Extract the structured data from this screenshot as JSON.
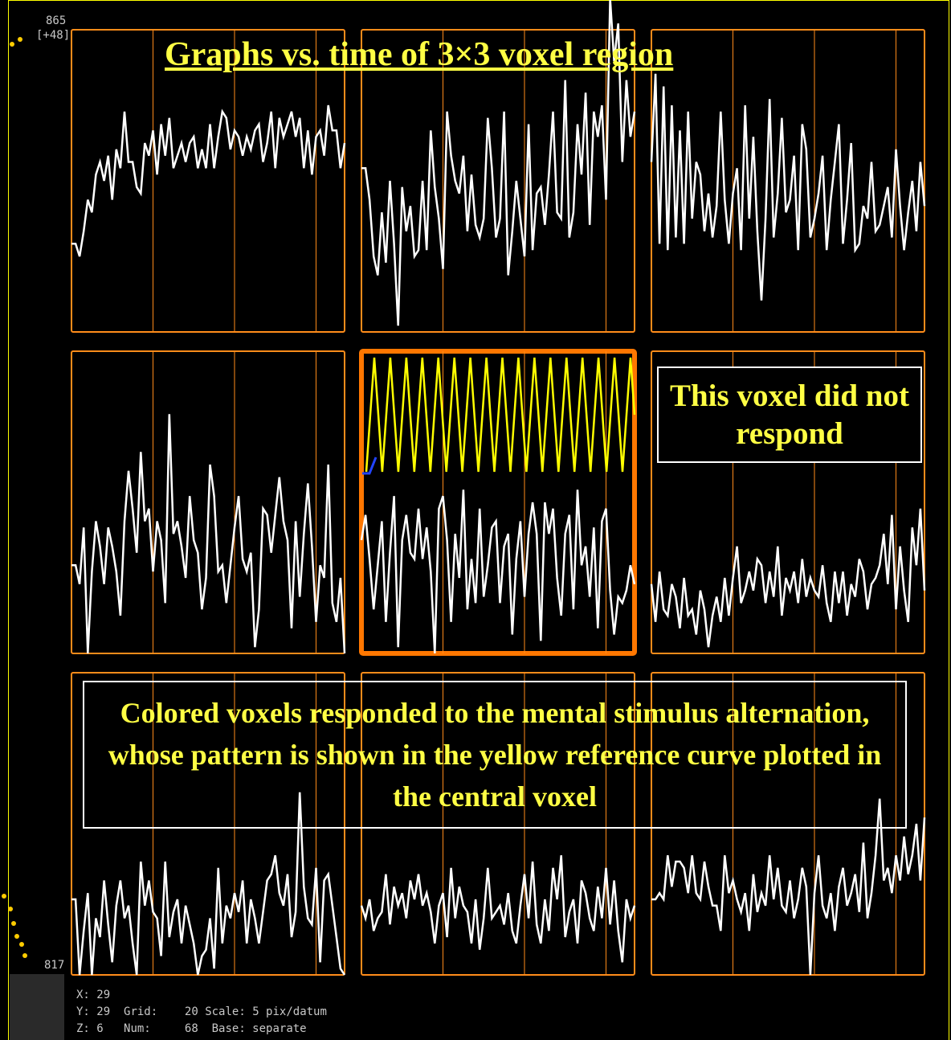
{
  "title": "Graphs vs. time of 3×3 voxel region",
  "note": "This voxel did not respond",
  "caption": "Colored voxels responded to the mental stimulus alternation, whose pattern is shown in the yellow reference curve plotted in the central voxel",
  "axis": {
    "max_label": "865",
    "base_label": "[+48]",
    "min_label": "817"
  },
  "status": {
    "x": "X: 29",
    "y": "Y: 29",
    "z": "Z: 6",
    "grid_label": "Grid:",
    "grid_value": "20",
    "num_label": "Num:",
    "num_value": "68",
    "scale": "Scale: 5 pix/datum",
    "base": "Base: separate"
  },
  "colors": {
    "frame": "#ff8c1a",
    "selected_frame": "#ff7700",
    "grid": "#ff8c1a",
    "timeseries": "#ffffff",
    "reference": "#ffff00",
    "text": "#ffff44"
  },
  "grid_rule": {
    "points_per_graph": 68,
    "grid_every": 20
  },
  "chart_data": {
    "type": "line",
    "note": "",
    "cells": [
      {
        "row": 0,
        "col": 0,
        "values": [
          831,
          831,
          829,
          833,
          838,
          836,
          842,
          844,
          841,
          845,
          838,
          846,
          843,
          852,
          844,
          844,
          840,
          839,
          847,
          845,
          849,
          842,
          850,
          845,
          851,
          843,
          845,
          847,
          844,
          847,
          848,
          843,
          846,
          843,
          850,
          843,
          848,
          852,
          851,
          846,
          849,
          848,
          845,
          848,
          846,
          849,
          850,
          844,
          847,
          852,
          843,
          851,
          848,
          850,
          852,
          848,
          851,
          843,
          849,
          842,
          848,
          849,
          845,
          853,
          849,
          849,
          843,
          847
        ]
      },
      {
        "row": 0,
        "col": 1,
        "values": [
          843,
          843,
          838,
          829,
          826,
          836,
          828,
          841,
          831,
          818,
          840,
          833,
          837,
          829,
          830,
          841,
          830,
          849,
          840,
          835,
          827,
          852,
          845,
          841,
          839,
          845,
          833,
          842,
          834,
          832,
          835,
          851,
          843,
          832,
          835,
          852,
          826,
          833,
          841,
          835,
          829,
          850,
          830,
          839,
          840,
          834,
          842,
          852,
          836,
          835,
          857,
          832,
          836,
          850,
          842,
          855,
          834,
          852,
          848,
          853,
          838,
          870,
          860,
          866,
          844,
          857,
          848,
          852
        ]
      },
      {
        "row": 0,
        "col": 2,
        "values": [
          844,
          858,
          831,
          856,
          830,
          853,
          832,
          849,
          831,
          852,
          835,
          844,
          842,
          833,
          839,
          832,
          837,
          852,
          838,
          831,
          839,
          843,
          830,
          853,
          835,
          848,
          833,
          822,
          835,
          854,
          832,
          839,
          851,
          836,
          838,
          845,
          830,
          850,
          846,
          832,
          835,
          839,
          845,
          830,
          838,
          844,
          850,
          831,
          838,
          847,
          830,
          831,
          837,
          835,
          844,
          833,
          834,
          837,
          840,
          832,
          846,
          837,
          830,
          836,
          841,
          833,
          844,
          837
        ]
      },
      {
        "row": 1,
        "col": 0,
        "values": [
          831,
          831,
          828,
          837,
          817,
          830,
          838,
          834,
          828,
          837,
          834,
          830,
          823,
          838,
          846,
          840,
          833,
          849,
          838,
          840,
          830,
          838,
          835,
          825,
          855,
          836,
          838,
          834,
          829,
          842,
          835,
          833,
          824,
          829,
          847,
          842,
          830,
          831,
          825,
          831,
          837,
          842,
          832,
          830,
          833,
          818,
          824,
          840,
          839,
          833,
          839,
          845,
          838,
          835,
          821,
          838,
          826,
          836,
          844,
          834,
          822,
          831,
          829,
          847,
          825,
          822,
          829,
          817
        ]
      },
      {
        "row": 1,
        "col": 1,
        "values": [
          835,
          839,
          832,
          824,
          831,
          838,
          822,
          833,
          842,
          818,
          835,
          839,
          833,
          832,
          840,
          832,
          837,
          830,
          817,
          840,
          842,
          835,
          822,
          836,
          829,
          843,
          824,
          832,
          825,
          840,
          826,
          831,
          837,
          838,
          825,
          834,
          836,
          820,
          832,
          838,
          826,
          836,
          841,
          836,
          819,
          841,
          836,
          840,
          829,
          823,
          836,
          839,
          824,
          843,
          831,
          834,
          826,
          837,
          821,
          838,
          840,
          827,
          820,
          826,
          825,
          827,
          831,
          828
        ],
        "reference": [
          0,
          0.5,
          1,
          0.5,
          0,
          0.5,
          1,
          0.5,
          0,
          0.5,
          1,
          0.5,
          0,
          0.5,
          1,
          0.5,
          0,
          0.5,
          1,
          0.5,
          0,
          0.5,
          1,
          0.5,
          0,
          0.5,
          1,
          0.5,
          0,
          0.5,
          1,
          0.5,
          0,
          0.5,
          1,
          0.5,
          0,
          0.5,
          1,
          0.5,
          0,
          0.5,
          1,
          0.5,
          0,
          0.5,
          1,
          0.5,
          0,
          0.5,
          1,
          0.5,
          0,
          0.5,
          1,
          0.5,
          0,
          0.5,
          1,
          0.5,
          0,
          0.5,
          1,
          0.5,
          0,
          0.5,
          1,
          0.5
        ]
      },
      {
        "row": 1,
        "col": 2,
        "values": [
          828,
          822,
          830,
          824,
          823,
          828,
          826,
          821,
          829,
          823,
          824,
          820,
          827,
          824,
          818,
          823,
          826,
          822,
          829,
          823,
          829,
          834,
          825,
          827,
          830,
          827,
          832,
          831,
          825,
          830,
          826,
          834,
          823,
          829,
          827,
          830,
          825,
          832,
          826,
          829,
          827,
          826,
          831,
          825,
          822,
          830,
          825,
          830,
          823,
          828,
          826,
          832,
          830,
          824,
          828,
          829,
          831,
          836,
          828,
          839,
          824,
          834,
          827,
          822,
          837,
          831,
          840,
          827
        ]
      },
      {
        "row": 2,
        "col": 0,
        "values": [
          829,
          829,
          817,
          824,
          830,
          817,
          826,
          823,
          832,
          825,
          819,
          828,
          832,
          826,
          828,
          822,
          817,
          835,
          828,
          832,
          827,
          826,
          820,
          835,
          823,
          827,
          829,
          822,
          828,
          825,
          822,
          817,
          820,
          821,
          826,
          818,
          834,
          822,
          828,
          826,
          830,
          827,
          832,
          822,
          829,
          826,
          822,
          827,
          832,
          833,
          836,
          830,
          828,
          833,
          823,
          827,
          846,
          831,
          826,
          825,
          834,
          819,
          832,
          833,
          828,
          823,
          818,
          817
        ]
      },
      {
        "row": 2,
        "col": 1,
        "values": [
          828,
          826,
          829,
          824,
          826,
          827,
          833,
          825,
          831,
          828,
          830,
          826,
          832,
          829,
          833,
          828,
          830,
          827,
          822,
          828,
          830,
          823,
          834,
          826,
          831,
          828,
          827,
          822,
          829,
          821,
          826,
          834,
          826,
          827,
          828,
          825,
          830,
          824,
          822,
          828,
          833,
          826,
          835,
          825,
          822,
          829,
          824,
          834,
          829,
          836,
          823,
          827,
          829,
          822,
          832,
          830,
          826,
          824,
          831,
          826,
          834,
          825,
          832,
          824,
          819,
          829,
          826,
          828
        ]
      },
      {
        "row": 2,
        "col": 2,
        "values": [
          829,
          829,
          830,
          829,
          836,
          831,
          835,
          835,
          834,
          830,
          836,
          830,
          829,
          835,
          831,
          828,
          828,
          824,
          836,
          830,
          832,
          829,
          827,
          830,
          824,
          833,
          827,
          830,
          828,
          836,
          829,
          834,
          828,
          827,
          832,
          826,
          829,
          834,
          831,
          817,
          830,
          836,
          828,
          826,
          830,
          824,
          831,
          834,
          828,
          830,
          833,
          827,
          838,
          826,
          830,
          836,
          845,
          832,
          834,
          830,
          836,
          832,
          839,
          833,
          836,
          841,
          832,
          842
        ]
      }
    ],
    "ylim": [
      817,
      865
    ]
  }
}
